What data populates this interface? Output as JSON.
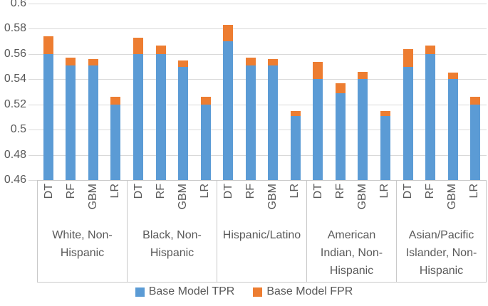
{
  "chart_data": {
    "type": "bar",
    "stacked": true,
    "orientation": "vertical",
    "title": "",
    "xlabel": "",
    "ylabel": "",
    "ylim": [
      0.46,
      0.6
    ],
    "ytick_labels": [
      "0.6",
      "0.58",
      "0.56",
      "0.54",
      "0.52",
      "0.5",
      "0.48",
      "0.46"
    ],
    "grid": "horizontal",
    "legend_position": "bottom",
    "models": [
      "DT",
      "RF",
      "GBM",
      "LR"
    ],
    "series": [
      {
        "name": "Base Model TPR",
        "color": "#5B9BD5"
      },
      {
        "name": "Base Model FPR",
        "color": "#ED7D31"
      }
    ],
    "groups": [
      {
        "label": "White, Non-Hispanic",
        "label_lines": [
          "White, Non-",
          "Hispanic"
        ],
        "tpr": [
          0.56,
          0.551,
          0.551,
          0.52
        ],
        "fpr": [
          0.014,
          0.006,
          0.005,
          0.006
        ]
      },
      {
        "label": "Black, Non-Hispanic",
        "label_lines": [
          "Black, Non-",
          "Hispanic"
        ],
        "tpr": [
          0.56,
          0.56,
          0.55,
          0.52
        ],
        "fpr": [
          0.013,
          0.007,
          0.005,
          0.006
        ]
      },
      {
        "label": "Hispanic/Latino",
        "label_lines": [
          "Hispanic/Latino"
        ],
        "tpr": [
          0.57,
          0.551,
          0.551,
          0.511
        ],
        "fpr": [
          0.013,
          0.006,
          0.005,
          0.004
        ]
      },
      {
        "label": "American Indian, Non-Hispanic",
        "label_lines": [
          "American",
          "Indian, Non-",
          "Hispanic"
        ],
        "tpr": [
          0.54,
          0.529,
          0.54,
          0.511
        ],
        "fpr": [
          0.014,
          0.008,
          0.006,
          0.004
        ]
      },
      {
        "label": "Asian/Pacific Islander, Non-Hispanic",
        "label_lines": [
          "Asian/Pacific",
          "Islander, Non-",
          "Hispanic"
        ],
        "tpr": [
          0.55,
          0.56,
          0.54,
          0.52
        ],
        "fpr": [
          0.014,
          0.007,
          0.005,
          0.006
        ]
      }
    ]
  },
  "colors": {
    "tpr": "#5B9BD5",
    "fpr": "#ED7D31",
    "text": "#595959",
    "gridline": "#D9D9D9",
    "axis_line": "#C9C9C9"
  }
}
